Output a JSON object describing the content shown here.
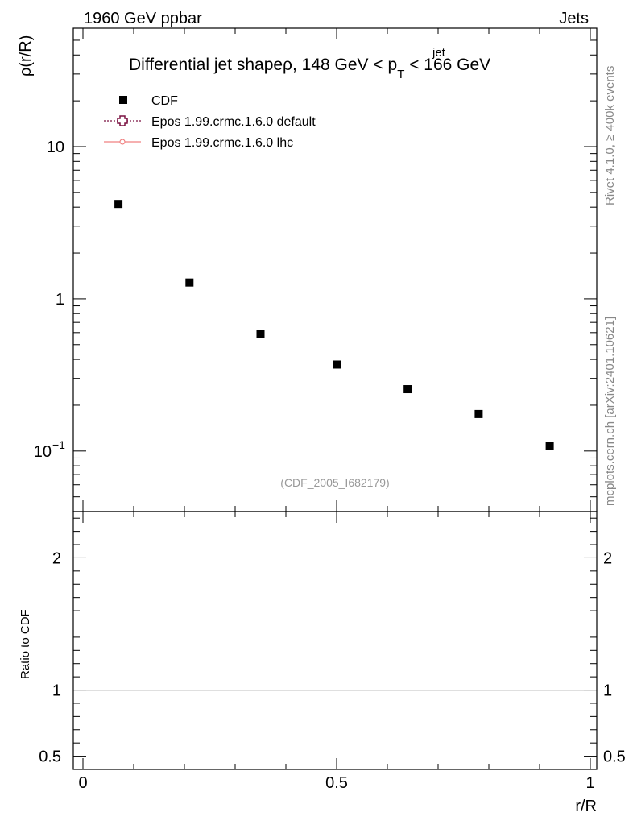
{
  "header": {
    "left": "1960 GeV ppbar",
    "right": "Jets"
  },
  "side_labels": {
    "rivet": "Rivet 4.1.0, ≥ 400k events",
    "mcplots": "mcplots.cern.ch [arXiv:2401.10621]"
  },
  "watermark": "(CDF_2005_I682179)",
  "chart_data": {
    "type": "scatter",
    "title": "Differential jet shapeρ, 148 GeV < p",
    "title_sup": "jet",
    "title_sub": "T",
    "title_tail": " < 166 GeV",
    "xlabel": "r/R",
    "ylabel": "ρ(r/R)",
    "ratio_ylabel": "Ratio to CDF",
    "xlim": [
      0,
      1
    ],
    "ylim": [
      0.04,
      60
    ],
    "ylog": true,
    "ratio_ylim": [
      0.4,
      2.35
    ],
    "x_ticks": [
      {
        "value": 0,
        "label": "0"
      },
      {
        "value": 0.5,
        "label": "0.5"
      },
      {
        "value": 1,
        "label": "1"
      }
    ],
    "y_ticks": [
      {
        "value": 0.1,
        "label": "10",
        "sup": "−1"
      },
      {
        "value": 1,
        "label": "1",
        "sup": ""
      },
      {
        "value": 10,
        "label": "10",
        "sup": ""
      }
    ],
    "ratio_ticks": [
      {
        "value": 0.5,
        "label": "0.5"
      },
      {
        "value": 1,
        "label": "1"
      },
      {
        "value": 2,
        "label": "2"
      }
    ],
    "legend": [
      {
        "name": "CDF",
        "marker": "square",
        "color": "#000000"
      },
      {
        "name": "Epos 1.99.crmc.1.6.0 default",
        "marker": "open-cross",
        "color": "#7a1040"
      },
      {
        "name": "Epos 1.99.crmc.1.6.0 lhc",
        "marker": "line",
        "color": "#f08080"
      }
    ],
    "series": [
      {
        "name": "CDF",
        "x": [
          0.07,
          0.21,
          0.35,
          0.5,
          0.64,
          0.78,
          0.92
        ],
        "y": [
          4.2,
          1.28,
          0.59,
          0.37,
          0.255,
          0.175,
          0.108
        ]
      }
    ],
    "ratio_reference": 1
  }
}
